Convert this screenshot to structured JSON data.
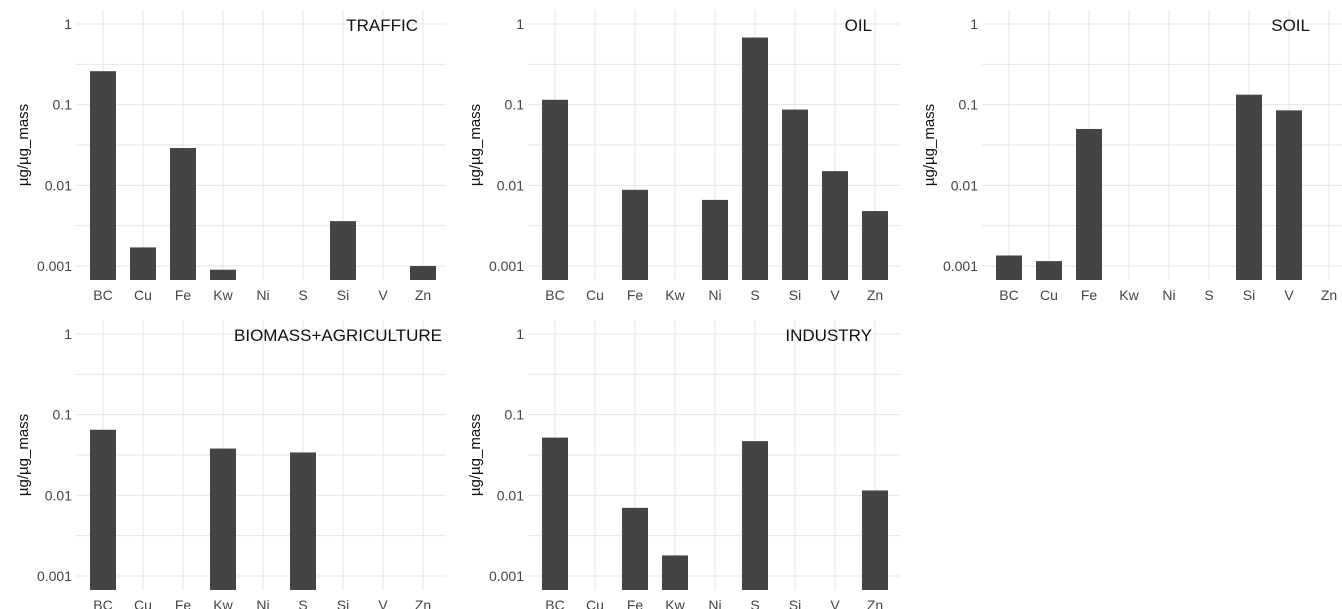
{
  "chart_data": {
    "type": "bar",
    "scale": "log10",
    "ylabel": "µg/µg_mass",
    "ylim": [
      0.0007,
      1.3
    ],
    "yticks": [
      1,
      0.1,
      0.01,
      0.001
    ],
    "ytick_labels": [
      "1",
      "0.1",
      "0.01",
      "0.001"
    ],
    "categories": [
      "BC",
      "Cu",
      "Fe",
      "Kw",
      "Ni",
      "S",
      "Si",
      "V",
      "Zn"
    ],
    "bar_color": "#444444",
    "grid": true,
    "panels": [
      {
        "title": "TRAFFIC",
        "values": [
          0.26,
          0.0017,
          0.029,
          0.0009,
          null,
          null,
          0.0036,
          null,
          0.001
        ]
      },
      {
        "title": "OIL",
        "values": [
          0.115,
          null,
          0.0088,
          null,
          0.0066,
          0.68,
          0.087,
          0.015,
          0.0048
        ]
      },
      {
        "title": "SOIL",
        "values": [
          0.00135,
          0.00115,
          0.05,
          null,
          null,
          null,
          0.133,
          0.085,
          null
        ]
      },
      {
        "title": "BIOMASS+AGRICULTURE",
        "values": [
          0.065,
          null,
          null,
          0.038,
          null,
          0.034,
          null,
          null,
          null
        ]
      },
      {
        "title": "INDUSTRY",
        "values": [
          0.052,
          null,
          0.007,
          0.0018,
          null,
          0.047,
          null,
          null,
          0.0115
        ]
      }
    ]
  }
}
